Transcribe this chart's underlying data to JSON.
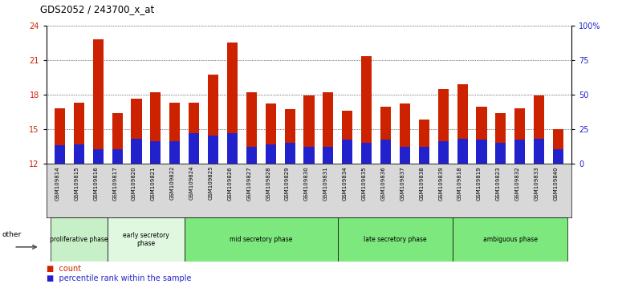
{
  "title": "GDS2052 / 243700_x_at",
  "samples": [
    "GSM109814",
    "GSM109815",
    "GSM109816",
    "GSM109817",
    "GSM109820",
    "GSM109821",
    "GSM109822",
    "GSM109824",
    "GSM109825",
    "GSM109826",
    "GSM109827",
    "GSM109828",
    "GSM109829",
    "GSM109830",
    "GSM109831",
    "GSM109834",
    "GSM109835",
    "GSM109836",
    "GSM109837",
    "GSM109838",
    "GSM109839",
    "GSM109818",
    "GSM109819",
    "GSM109823",
    "GSM109832",
    "GSM109833",
    "GSM109840"
  ],
  "count_values": [
    16.8,
    17.3,
    22.8,
    16.4,
    17.6,
    18.2,
    17.3,
    17.3,
    19.7,
    22.5,
    18.2,
    17.2,
    16.7,
    17.9,
    18.2,
    16.6,
    21.3,
    16.9,
    17.2,
    15.8,
    18.5,
    18.9,
    16.9,
    16.4,
    16.8,
    17.9,
    15.0
  ],
  "percentile_values": [
    13,
    14,
    10,
    10,
    18,
    16,
    16,
    22,
    20,
    22,
    12,
    14,
    15,
    12,
    12,
    17,
    15,
    17,
    12,
    12,
    16,
    18,
    17,
    15,
    17,
    18,
    10
  ],
  "phases": [
    {
      "name": "proliferative phase",
      "start": 0,
      "end": 3,
      "color": "#c8f0c8"
    },
    {
      "name": "early secretory\nphase",
      "start": 3,
      "end": 7,
      "color": "#e0f8e0"
    },
    {
      "name": "mid secretory phase",
      "start": 7,
      "end": 15,
      "color": "#7de87d"
    },
    {
      "name": "late secretory phase",
      "start": 15,
      "end": 21,
      "color": "#7de87d"
    },
    {
      "name": "ambiguous phase",
      "start": 21,
      "end": 27,
      "color": "#7de87d"
    }
  ],
  "ylim_left": [
    12,
    24
  ],
  "ylim_right": [
    0,
    100
  ],
  "yticks_left": [
    12,
    15,
    18,
    21,
    24
  ],
  "yticks_right": [
    0,
    25,
    50,
    75,
    100
  ],
  "ytick_labels_right": [
    "0",
    "25",
    "50",
    "75",
    "100%"
  ],
  "bar_color": "#cc2200",
  "percentile_color": "#2222cc",
  "background_color": "#ffffff",
  "plot_bg_color": "#ffffff",
  "grid_color": "#000000",
  "ylabel_left_color": "#cc2200",
  "ylabel_right_color": "#2222cc",
  "bar_width": 0.55,
  "figsize": [
    7.7,
    3.54
  ],
  "dpi": 100,
  "tick_bg_color": "#d8d8d8"
}
